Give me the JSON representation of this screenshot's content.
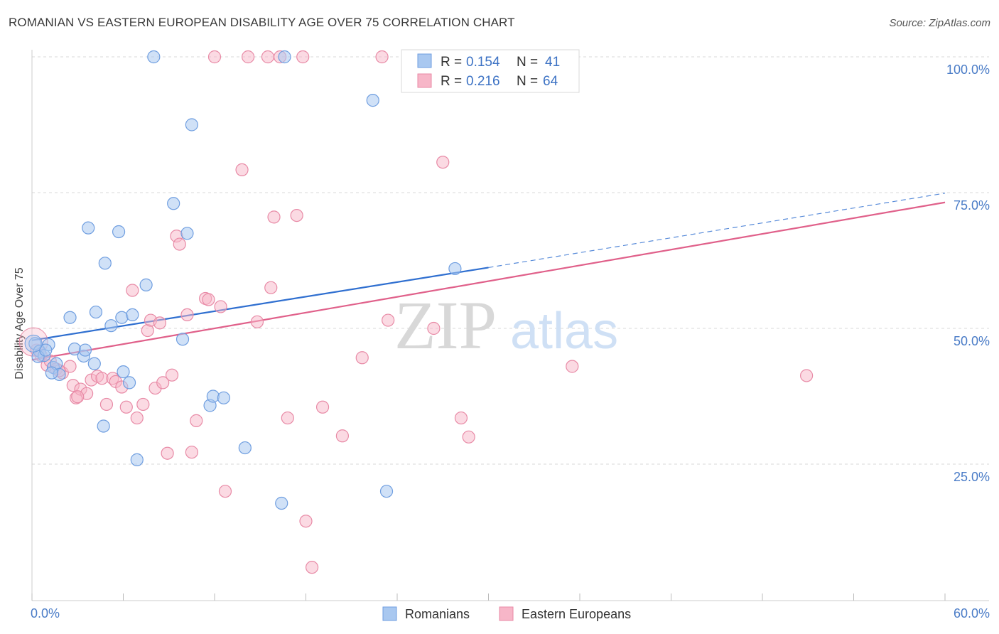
{
  "title": "ROMANIAN VS EASTERN EUROPEAN DISABILITY AGE OVER 75 CORRELATION CHART",
  "source": "Source: ZipAtlas.com",
  "watermark": {
    "zip": "ZIP",
    "atlas": "atlas"
  },
  "colors": {
    "blue_fill": "#a9c8f0",
    "blue_stroke": "#6f9ee0",
    "blue_line": "#2f6fd0",
    "pink_fill": "#f7b6c8",
    "pink_stroke": "#e88aa6",
    "pink_line": "#e0608a",
    "grid": "#d9d9d9",
    "tick_text": "#4a7cc7"
  },
  "legend": {
    "rows": [
      {
        "r_label": "R =",
        "r_value": "0.154",
        "n_label": "N =",
        "n_value": "41"
      },
      {
        "r_label": "R =",
        "r_value": "0.216",
        "n_label": "N =",
        "n_value": "64"
      }
    ]
  },
  "bottom_legend": [
    "Romanians",
    "Eastern Europeans"
  ],
  "chart_data": {
    "type": "scatter",
    "title": "ROMANIAN VS EASTERN EUROPEAN DISABILITY AGE OVER 75 CORRELATION CHART",
    "xlabel": "",
    "ylabel": "Disability Age Over 75",
    "xlim": [
      0,
      60
    ],
    "ylim": [
      0,
      105
    ],
    "x_tick_labels": [
      "0.0%",
      "60.0%"
    ],
    "y_ticks": [
      25,
      50,
      75,
      100
    ],
    "y_tick_labels": [
      "25.0%",
      "50.0%",
      "75.0%",
      "100.0%"
    ],
    "series": [
      {
        "name": "Romanians",
        "r": 0.154,
        "n": 41,
        "trend": {
          "x0": 0,
          "y0": 47.8,
          "x1": 30,
          "y1": 61.2,
          "dashed_to_x": 60,
          "dashed_to_y": 74.9
        },
        "points": [
          [
            0.2,
            47.2
          ],
          [
            0.5,
            45.8
          ],
          [
            0.8,
            45.0
          ],
          [
            1.1,
            47.0
          ],
          [
            1.4,
            42.8
          ],
          [
            1.6,
            43.5
          ],
          [
            1.8,
            41.5
          ],
          [
            2.5,
            52.0
          ],
          [
            2.8,
            46.2
          ],
          [
            3.4,
            44.9
          ],
          [
            3.5,
            46.0
          ],
          [
            3.7,
            68.5
          ],
          [
            4.1,
            43.5
          ],
          [
            4.2,
            53.0
          ],
          [
            4.7,
            32.0
          ],
          [
            4.8,
            62.0
          ],
          [
            5.2,
            50.5
          ],
          [
            5.7,
            67.8
          ],
          [
            5.9,
            52.0
          ],
          [
            6.0,
            42.0
          ],
          [
            6.4,
            40.0
          ],
          [
            6.6,
            52.5
          ],
          [
            6.9,
            25.8
          ],
          [
            7.5,
            58.0
          ],
          [
            8.0,
            100.0
          ],
          [
            9.3,
            73.0
          ],
          [
            9.9,
            48.0
          ],
          [
            10.2,
            67.5
          ],
          [
            10.5,
            87.5
          ],
          [
            11.7,
            35.8
          ],
          [
            11.9,
            37.5
          ],
          [
            12.6,
            37.2
          ],
          [
            14.0,
            28.0
          ],
          [
            16.4,
            17.8
          ],
          [
            16.6,
            100.0
          ],
          [
            22.4,
            92.0
          ],
          [
            23.3,
            20.0
          ],
          [
            27.8,
            61.0
          ],
          [
            0.4,
            44.8
          ],
          [
            0.9,
            46.0
          ],
          [
            1.3,
            41.8
          ]
        ]
      },
      {
        "name": "Eastern Europeans",
        "r": 0.216,
        "n": 64,
        "trend": {
          "x0": 0,
          "y0": 44.2,
          "x1": 60,
          "y1": 73.2
        },
        "points": [
          [
            0.3,
            46.0
          ],
          [
            0.6,
            45.0
          ],
          [
            1.0,
            43.2
          ],
          [
            1.2,
            44.0
          ],
          [
            1.6,
            42.5
          ],
          [
            2.0,
            41.8
          ],
          [
            2.5,
            43.0
          ],
          [
            2.7,
            39.5
          ],
          [
            2.9,
            37.2
          ],
          [
            3.2,
            38.8
          ],
          [
            3.6,
            38.0
          ],
          [
            3.9,
            40.5
          ],
          [
            4.3,
            41.2
          ],
          [
            4.6,
            40.8
          ],
          [
            4.9,
            36.0
          ],
          [
            5.3,
            40.8
          ],
          [
            5.5,
            40.2
          ],
          [
            5.9,
            39.2
          ],
          [
            6.2,
            35.5
          ],
          [
            6.6,
            57.0
          ],
          [
            6.9,
            33.5
          ],
          [
            7.3,
            36.0
          ],
          [
            7.6,
            49.6
          ],
          [
            7.8,
            51.5
          ],
          [
            8.1,
            39.0
          ],
          [
            8.4,
            51.0
          ],
          [
            8.6,
            40.0
          ],
          [
            8.9,
            27.0
          ],
          [
            9.2,
            41.4
          ],
          [
            9.5,
            67.0
          ],
          [
            9.7,
            65.5
          ],
          [
            10.2,
            52.5
          ],
          [
            10.5,
            27.2
          ],
          [
            10.8,
            33.0
          ],
          [
            11.4,
            55.5
          ],
          [
            11.6,
            55.3
          ],
          [
            12.0,
            100.0
          ],
          [
            12.4,
            54.0
          ],
          [
            12.7,
            20.0
          ],
          [
            13.8,
            79.2
          ],
          [
            14.2,
            100.0
          ],
          [
            14.8,
            51.2
          ],
          [
            15.7,
            57.5
          ],
          [
            15.9,
            70.5
          ],
          [
            16.3,
            100.0
          ],
          [
            16.8,
            33.5
          ],
          [
            17.4,
            70.8
          ],
          [
            17.8,
            100.0
          ],
          [
            18.0,
            14.5
          ],
          [
            18.4,
            6.0
          ],
          [
            19.1,
            35.5
          ],
          [
            20.4,
            30.2
          ],
          [
            21.7,
            44.6
          ],
          [
            23.0,
            100.0
          ],
          [
            23.4,
            51.5
          ],
          [
            26.4,
            50.0
          ],
          [
            27.0,
            80.6
          ],
          [
            28.2,
            33.5
          ],
          [
            28.7,
            30.0
          ],
          [
            35.5,
            43.0
          ],
          [
            50.9,
            41.3
          ],
          [
            1.8,
            42.2
          ],
          [
            3.0,
            37.4
          ],
          [
            15.5,
            100.0
          ]
        ]
      }
    ]
  }
}
